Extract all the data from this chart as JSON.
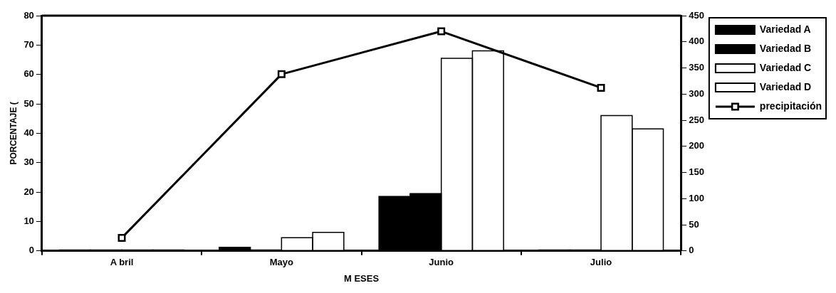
{
  "chart_data": {
    "type": "bar",
    "xlabel": "M ESES",
    "ylabel": "PORCENTAJE (",
    "categories": [
      "A bril",
      "Mayo",
      "Junio",
      "Julio"
    ],
    "series": [
      {
        "name": "Variedad A",
        "color": "#000000",
        "values": [
          0.3,
          1.2,
          18.5,
          0.3
        ]
      },
      {
        "name": "Variedad B",
        "color": "#000000",
        "values": [
          0.3,
          0.3,
          19.5,
          0.3
        ]
      },
      {
        "name": "Variedad C",
        "color": "#ffffff",
        "colors": [
          "#000000",
          "#ffffff",
          "#ffffff",
          "#ffffff"
        ],
        "values": [
          0.3,
          4.5,
          65.5,
          46
        ]
      },
      {
        "name": "Variedad D",
        "color": "#ffffff",
        "colors": [
          "#000000",
          "#ffffff",
          "#ffffff",
          "#ffffff"
        ],
        "values": [
          0.3,
          6.3,
          68,
          41.5
        ]
      },
      {
        "name": "precipitación",
        "type": "line",
        "axis": "y2",
        "color": "#000000",
        "values": [
          25,
          338,
          420,
          312
        ]
      }
    ],
    "ylim": [
      0,
      80
    ],
    "yticks": [
      0,
      10,
      20,
      30,
      40,
      50,
      60,
      70,
      80
    ],
    "y2lim": [
      0,
      450
    ],
    "y2ticks": [
      0,
      50,
      100,
      150,
      200,
      250,
      300,
      350,
      400,
      450
    ],
    "grid": false,
    "legend": "top right",
    "marker": "square",
    "line_style": "solid"
  }
}
